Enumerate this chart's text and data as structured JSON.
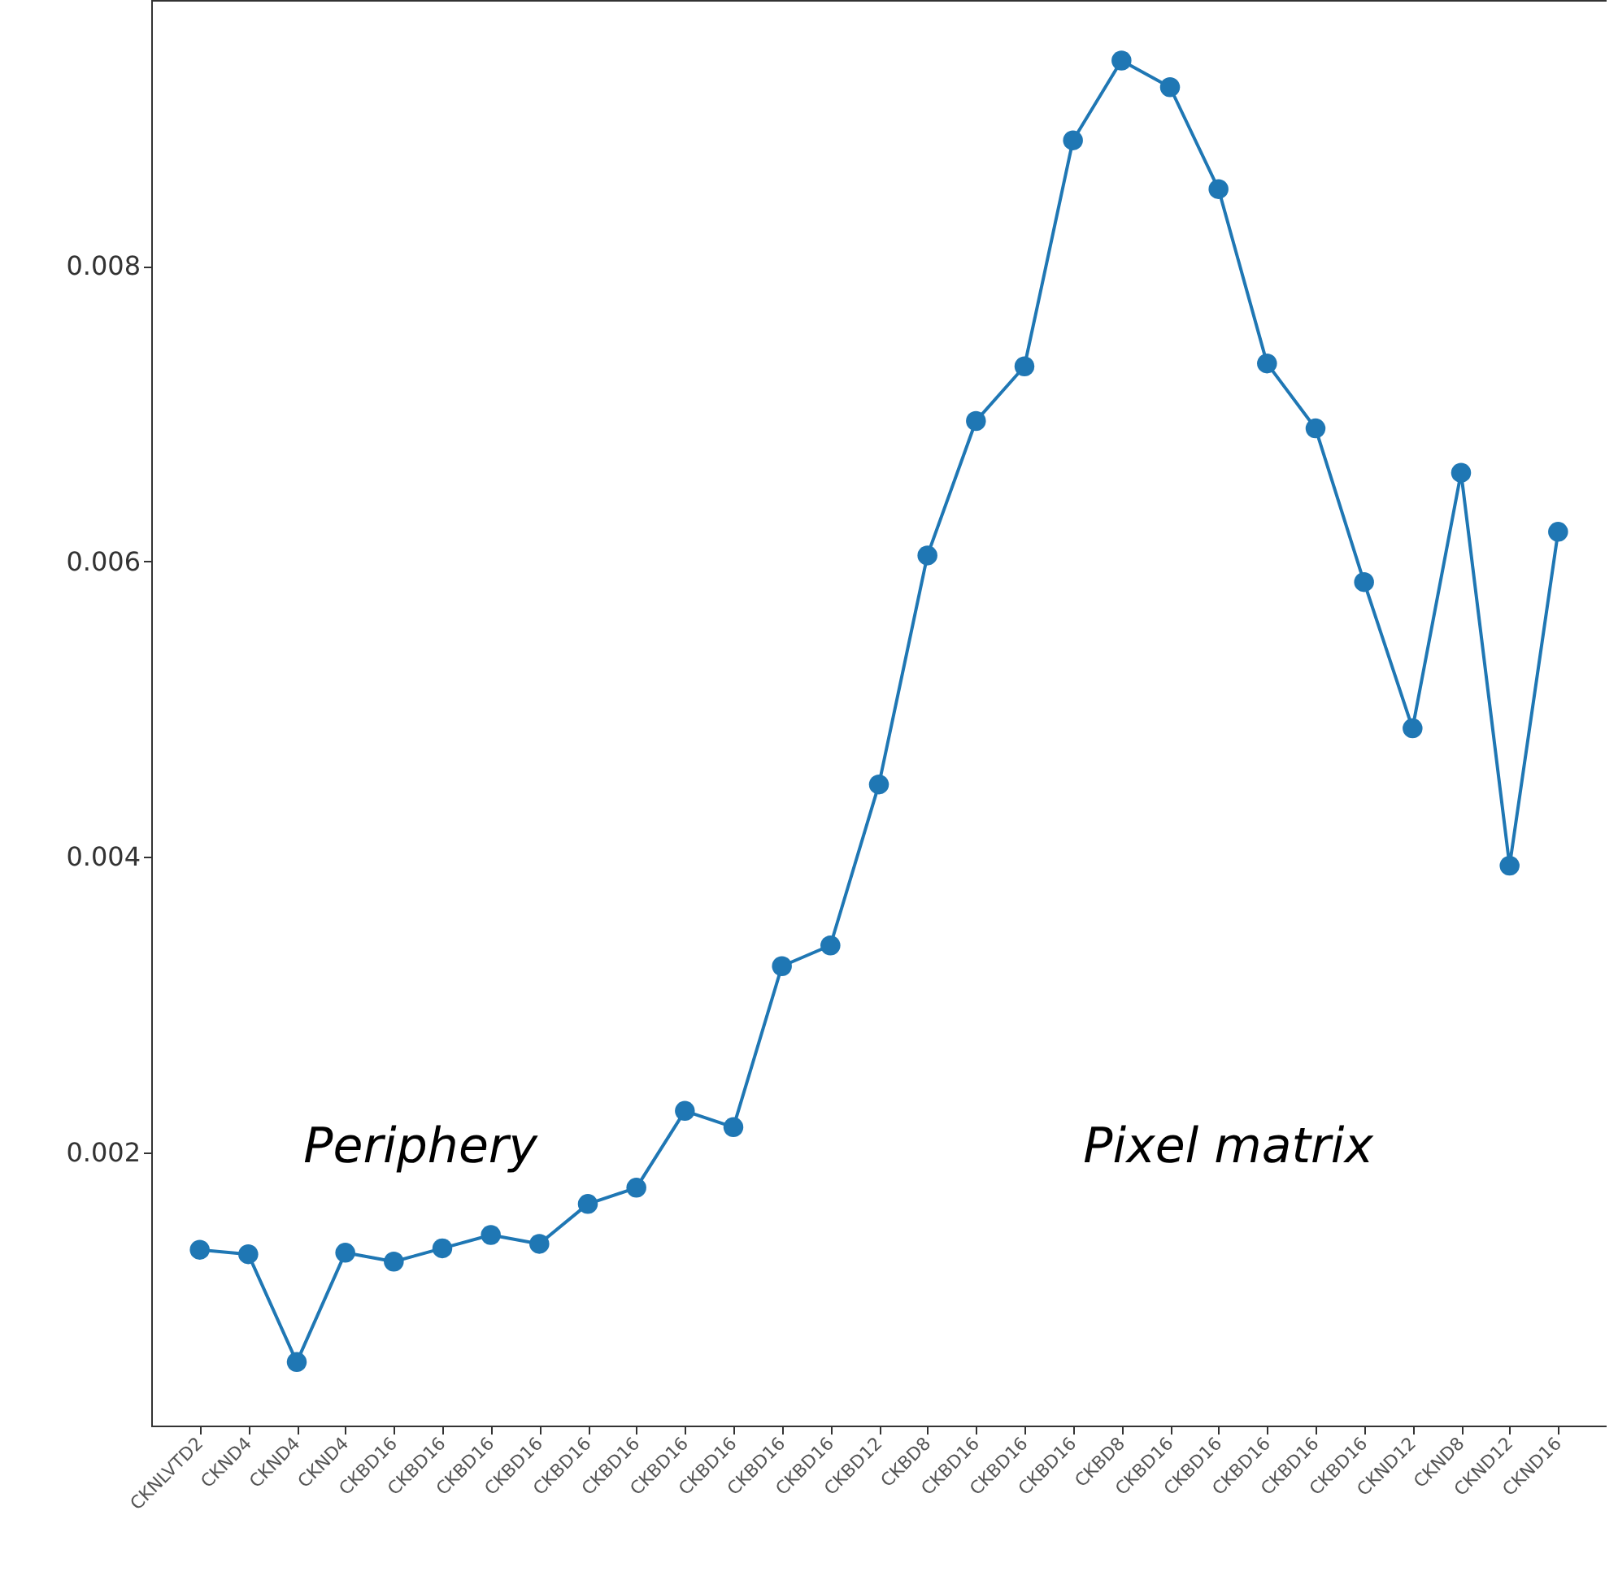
{
  "chart_data": {
    "type": "line",
    "categories": [
      "CKNLVTD2",
      "CKND4",
      "CKND4",
      "CKND4",
      "CKBD16",
      "CKBD16",
      "CKBD16",
      "CKBD16",
      "CKBD16",
      "CKBD16",
      "CKBD16",
      "CKBD16",
      "CKBD16",
      "CKBD16",
      "CKBD12",
      "CKBD8",
      "CKBD16",
      "CKBD16",
      "CKBD16",
      "CKBD8",
      "CKBD16",
      "CKBD16",
      "CKBD16",
      "CKBD16",
      "CKBD16",
      "CKND12",
      "CKND8",
      "CKND12",
      "CKND16"
    ],
    "series": [
      {
        "color": "#1f77b4",
        "values": [
          0.00134,
          0.00131,
          0.00058,
          0.00132,
          0.00126,
          0.00135,
          0.00144,
          0.00138,
          0.00165,
          0.00176,
          0.00228,
          0.00217,
          0.00326,
          0.0034,
          0.00449,
          0.00604,
          0.00695,
          0.00732,
          0.00885,
          0.00939,
          0.00921,
          0.00852,
          0.00734,
          0.0069,
          0.00586,
          0.00487,
          0.0066,
          0.00394,
          0.0062
        ]
      }
    ],
    "ylim": [
      0.00015,
      0.0098
    ],
    "yticks": [
      0.002,
      0.004,
      0.006,
      0.008
    ],
    "marker": "circle",
    "line_style": "solid",
    "grid": false,
    "annotations": [
      "Periphery",
      "Pixel matrix"
    ]
  }
}
